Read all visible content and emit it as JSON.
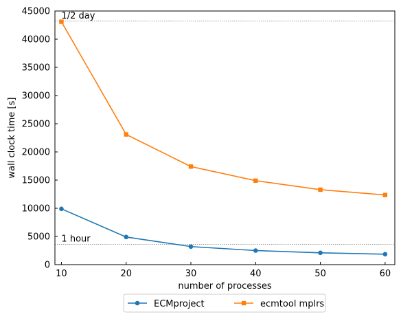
{
  "chart_data": {
    "type": "line",
    "title": "",
    "xlabel": "number of processes",
    "ylabel": "wall clock time [s]",
    "x": [
      10,
      20,
      30,
      40,
      50,
      60
    ],
    "xlim": [
      9,
      61.5
    ],
    "ylim": [
      0,
      45000
    ],
    "xticks": [
      10,
      20,
      30,
      40,
      50,
      60
    ],
    "yticks": [
      0,
      5000,
      10000,
      15000,
      20000,
      25000,
      30000,
      35000,
      40000,
      45000
    ],
    "grid": false,
    "legend_placement": "bottom-center, below plot",
    "series": [
      {
        "name": "ECMproject",
        "color": "#1f77b4",
        "marker": "circle",
        "values": [
          9900,
          4900,
          3200,
          2500,
          2100,
          1850
        ]
      },
      {
        "name": "ecmtool mplrs",
        "color": "#ff7f0e",
        "marker": "square",
        "values": [
          43100,
          23100,
          17400,
          14900,
          13300,
          12350
        ]
      }
    ],
    "reference_lines": [
      {
        "y": 43200,
        "label": "1/2 day",
        "color": "#808080",
        "style": "dotted"
      },
      {
        "y": 3600,
        "label": "1 hour",
        "color": "#808080",
        "style": "dotted"
      }
    ]
  }
}
